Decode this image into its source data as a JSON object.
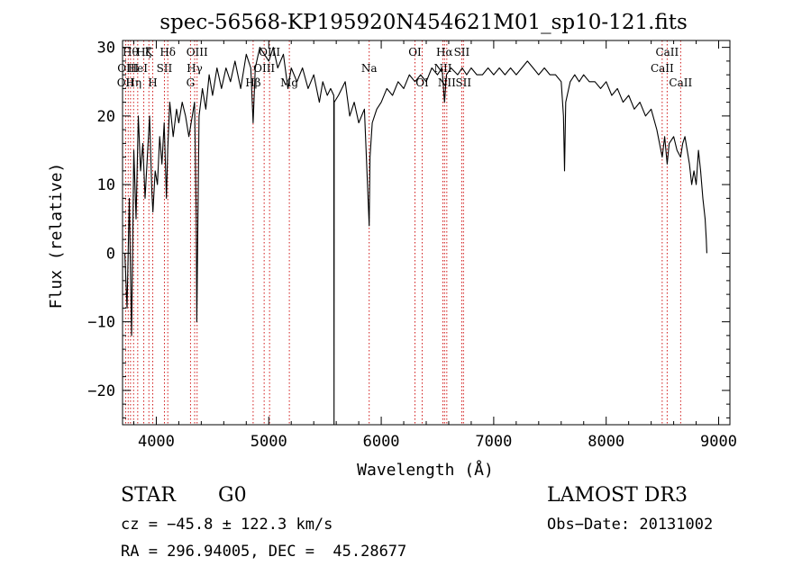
{
  "chart_data": {
    "type": "line",
    "title": "spec-56568-KP195920N454621M01_sp10-121.fits",
    "xlabel": "Wavelength (Å)",
    "ylabel": "Flux (relative)",
    "xlim": [
      3700,
      9100
    ],
    "ylim": [
      -25,
      31
    ],
    "x_ticks": [
      4000,
      5000,
      6000,
      7000,
      8000,
      9000
    ],
    "y_ticks": [
      -20,
      -10,
      0,
      10,
      20,
      30
    ],
    "series": [
      {
        "name": "spectrum",
        "color": "#000000",
        "points": [
          [
            3720,
            0
          ],
          [
            3740,
            -8
          ],
          [
            3760,
            8
          ],
          [
            3780,
            -12
          ],
          [
            3800,
            15
          ],
          [
            3820,
            5
          ],
          [
            3840,
            20
          ],
          [
            3860,
            12
          ],
          [
            3880,
            16
          ],
          [
            3900,
            8
          ],
          [
            3920,
            14
          ],
          [
            3940,
            20
          ],
          [
            3960,
            9
          ],
          [
            3970,
            6
          ],
          [
            3990,
            12
          ],
          [
            4010,
            10
          ],
          [
            4030,
            17
          ],
          [
            4050,
            13
          ],
          [
            4070,
            19
          ],
          [
            4090,
            8
          ],
          [
            4101,
            15
          ],
          [
            4120,
            22
          ],
          [
            4150,
            17
          ],
          [
            4180,
            21
          ],
          [
            4200,
            19
          ],
          [
            4230,
            22
          ],
          [
            4260,
            20
          ],
          [
            4290,
            17
          ],
          [
            4320,
            20
          ],
          [
            4340,
            22
          ],
          [
            4355,
            5
          ],
          [
            4360,
            -10
          ],
          [
            4380,
            20
          ],
          [
            4410,
            24
          ],
          [
            4440,
            21
          ],
          [
            4470,
            26
          ],
          [
            4500,
            23
          ],
          [
            4540,
            27
          ],
          [
            4580,
            24
          ],
          [
            4620,
            27
          ],
          [
            4660,
            25
          ],
          [
            4700,
            28
          ],
          [
            4750,
            24
          ],
          [
            4800,
            29
          ],
          [
            4840,
            27
          ],
          [
            4861,
            19
          ],
          [
            4880,
            27
          ],
          [
            4920,
            30
          ],
          [
            4960,
            29
          ],
          [
            5000,
            28
          ],
          [
            5040,
            30
          ],
          [
            5080,
            27
          ],
          [
            5130,
            29
          ],
          [
            5170,
            24
          ],
          [
            5200,
            27
          ],
          [
            5250,
            25
          ],
          [
            5300,
            27
          ],
          [
            5350,
            24
          ],
          [
            5400,
            26
          ],
          [
            5450,
            22
          ],
          [
            5480,
            25
          ],
          [
            5520,
            23
          ],
          [
            5550,
            24
          ],
          [
            5578,
            23
          ],
          [
            5580,
            -25
          ],
          [
            5582,
            22
          ],
          [
            5620,
            23
          ],
          [
            5680,
            25
          ],
          [
            5720,
            20
          ],
          [
            5760,
            22
          ],
          [
            5800,
            19
          ],
          [
            5850,
            21
          ],
          [
            5893,
            4
          ],
          [
            5900,
            14
          ],
          [
            5920,
            19
          ],
          [
            5960,
            21
          ],
          [
            6000,
            22
          ],
          [
            6050,
            24
          ],
          [
            6100,
            23
          ],
          [
            6150,
            25
          ],
          [
            6200,
            24
          ],
          [
            6250,
            26
          ],
          [
            6300,
            25
          ],
          [
            6350,
            26
          ],
          [
            6400,
            25
          ],
          [
            6450,
            27
          ],
          [
            6500,
            26
          ],
          [
            6540,
            27
          ],
          [
            6563,
            22
          ],
          [
            6580,
            26
          ],
          [
            6620,
            27
          ],
          [
            6680,
            26
          ],
          [
            6720,
            27
          ],
          [
            6760,
            26
          ],
          [
            6800,
            27
          ],
          [
            6850,
            26
          ],
          [
            6900,
            26
          ],
          [
            6950,
            27
          ],
          [
            7000,
            26
          ],
          [
            7050,
            27
          ],
          [
            7100,
            26
          ],
          [
            7150,
            27
          ],
          [
            7200,
            26
          ],
          [
            7250,
            27
          ],
          [
            7300,
            28
          ],
          [
            7350,
            27
          ],
          [
            7400,
            26
          ],
          [
            7450,
            27
          ],
          [
            7500,
            26
          ],
          [
            7550,
            26
          ],
          [
            7600,
            25
          ],
          [
            7620,
            20
          ],
          [
            7630,
            12
          ],
          [
            7640,
            22
          ],
          [
            7680,
            25
          ],
          [
            7720,
            26
          ],
          [
            7760,
            25
          ],
          [
            7800,
            26
          ],
          [
            7850,
            25
          ],
          [
            7900,
            25
          ],
          [
            7950,
            24
          ],
          [
            8000,
            25
          ],
          [
            8050,
            23
          ],
          [
            8100,
            24
          ],
          [
            8150,
            22
          ],
          [
            8200,
            23
          ],
          [
            8250,
            21
          ],
          [
            8300,
            22
          ],
          [
            8350,
            20
          ],
          [
            8400,
            21
          ],
          [
            8450,
            18
          ],
          [
            8498,
            14
          ],
          [
            8520,
            17
          ],
          [
            8542,
            13
          ],
          [
            8560,
            16
          ],
          [
            8600,
            17
          ],
          [
            8630,
            15
          ],
          [
            8662,
            14
          ],
          [
            8680,
            16
          ],
          [
            8700,
            17
          ],
          [
            8720,
            15
          ],
          [
            8740,
            13
          ],
          [
            8760,
            10
          ],
          [
            8780,
            12
          ],
          [
            8800,
            10
          ],
          [
            8820,
            15
          ],
          [
            8840,
            12
          ],
          [
            8860,
            8
          ],
          [
            8880,
            5
          ],
          [
            8890,
            2
          ],
          [
            8895,
            0
          ]
        ]
      }
    ],
    "lines": [
      {
        "x": 3727,
        "label": "OII",
        "row": 2
      },
      {
        "x": 3750,
        "label": "OIII",
        "row": 1
      },
      {
        "x": 3771,
        "label": "Hθ",
        "row": 0
      },
      {
        "x": 3798,
        "label": "Hη",
        "row": 2
      },
      {
        "x": 3835,
        "label": "HeI",
        "row": 1
      },
      {
        "x": 3889,
        "label": "Hζ",
        "row": 0
      },
      {
        "x": 3934,
        "label": "K",
        "row": 0
      },
      {
        "x": 3968,
        "label": "H",
        "row": 2
      },
      {
        "x": 4072,
        "label": "SII",
        "row": 1
      },
      {
        "x": 4102,
        "label": "Hδ",
        "row": 0
      },
      {
        "x": 4304,
        "label": "G",
        "row": 2
      },
      {
        "x": 4341,
        "label": "Hγ",
        "row": 1
      },
      {
        "x": 4363,
        "label": "OIII",
        "row": 0
      },
      {
        "x": 4861,
        "label": "Hβ",
        "row": 2
      },
      {
        "x": 4959,
        "label": "OIII",
        "row": 1
      },
      {
        "x": 5007,
        "label": "OIII",
        "row": 0
      },
      {
        "x": 5183,
        "label": "Mg",
        "row": 2
      },
      {
        "x": 5893,
        "label": "Na",
        "row": 1
      },
      {
        "x": 6300,
        "label": "OI",
        "row": 0
      },
      {
        "x": 6364,
        "label": "OI",
        "row": 2
      },
      {
        "x": 6548,
        "label": "NII",
        "row": 1
      },
      {
        "x": 6563,
        "label": "Hα",
        "row": 0
      },
      {
        "x": 6583,
        "label": "NII",
        "row": 2
      },
      {
        "x": 6716,
        "label": "SII",
        "row": 0
      },
      {
        "x": 6731,
        "label": "SII",
        "row": 2
      },
      {
        "x": 8498,
        "label": "CaII",
        "row": 1
      },
      {
        "x": 8542,
        "label": "CaII",
        "row": 0
      },
      {
        "x": 8662,
        "label": "CaII",
        "row": 2
      }
    ]
  },
  "info": {
    "class": "STAR",
    "subclass": "G0",
    "survey": "LAMOST DR3",
    "cz": "cz = −45.8 ± 122.3 km/s",
    "obs_date": "Obs−Date: 20131002",
    "radec": "RA = 296.94005, DEC =  45.28677"
  }
}
